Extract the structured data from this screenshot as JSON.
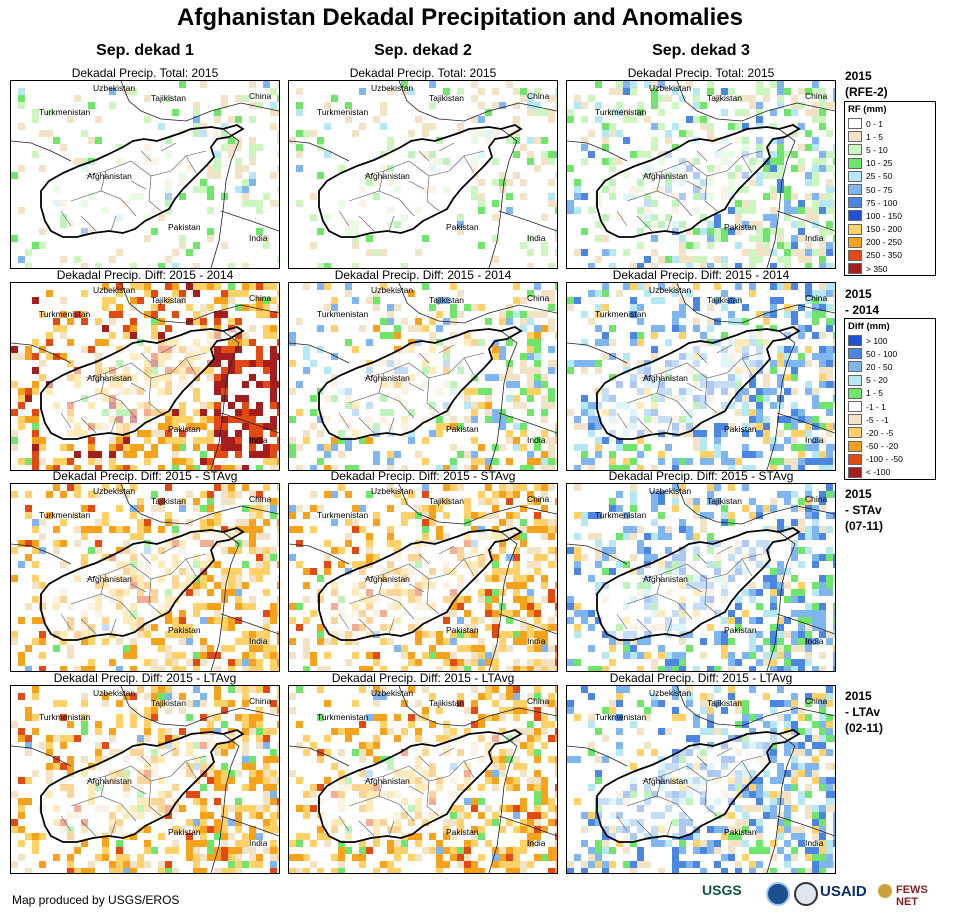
{
  "header": {
    "title": "Afghanistan Dekadal Precipitation and Anomalies"
  },
  "columns": [
    "Sep. dekad 1",
    "Sep. dekad 2",
    "Sep. dekad 3"
  ],
  "rows": [
    {
      "panel_title": "Dekadal Precip. Total: 2015",
      "row_label": "2015\n(RFE-2)"
    },
    {
      "panel_title": "Dekadal Precip. Diff: 2015 - 2014",
      "row_label": "2015\n- 2014"
    },
    {
      "panel_title": "Dekadal Precip. Diff: 2015 - STAvg",
      "row_label": "2015\n- STAv\n(07-11)"
    },
    {
      "panel_title": "Dekadal Precip. Diff: 2015 - LTAvg",
      "row_label": "2015\n- LTAv\n(02-11)"
    }
  ],
  "map_labels": {
    "uzbekistan": "Uzbekistan",
    "tajikistan": "Tajikistan",
    "china": "China",
    "turkmenistan": "Turkmenistan",
    "afghanistan": "Afghanistan",
    "pakistan": "Pakistan",
    "india": "India"
  },
  "legend_rf": {
    "title": "RF (mm)",
    "items": [
      {
        "label": "0 - 1",
        "color": "#ffffff"
      },
      {
        "label": "1 - 5",
        "color": "#f3e3c6"
      },
      {
        "label": "5 - 10",
        "color": "#cdf5c0"
      },
      {
        "label": "10 - 25",
        "color": "#6fe56b"
      },
      {
        "label": "25 - 50",
        "color": "#b5e8f3"
      },
      {
        "label": "50 - 75",
        "color": "#7fb6f0"
      },
      {
        "label": "75 - 100",
        "color": "#4b86e2"
      },
      {
        "label": "100 - 150",
        "color": "#1f52d6"
      },
      {
        "label": "150 - 200",
        "color": "#ffd166"
      },
      {
        "label": "200 - 250",
        "color": "#f7a21b"
      },
      {
        "label": "250 - 350",
        "color": "#e34a12"
      },
      {
        "label": "> 350",
        "color": "#a51e1e"
      }
    ]
  },
  "legend_diff": {
    "title": "Diff (mm)",
    "items": [
      {
        "label": "> 100",
        "color": "#1f52d6"
      },
      {
        "label": "50 - 100",
        "color": "#4b86e2"
      },
      {
        "label": "20 - 50",
        "color": "#7fb6f0"
      },
      {
        "label": "5 - 20",
        "color": "#b5e8f3"
      },
      {
        "label": "1 - 5",
        "color": "#6fe56b"
      },
      {
        "label": "-1 - 1",
        "color": "#ffffff"
      },
      {
        "label": "-5 - -1",
        "color": "#f3e3c6"
      },
      {
        "label": "-20 - -5",
        "color": "#ffd166"
      },
      {
        "label": "-50 - -20",
        "color": "#f7a21b"
      },
      {
        "label": "-100 - -50",
        "color": "#e34a12"
      },
      {
        "label": "< -100",
        "color": "#a51e1e"
      }
    ]
  },
  "footer": {
    "credit": "Map produced by USGS/EROS"
  },
  "logos": {
    "usgs": "USGS",
    "usaid": "USAID",
    "fews": "FEWS NET"
  },
  "colors": {
    "border": "#000000",
    "district_lines": "#555555"
  }
}
